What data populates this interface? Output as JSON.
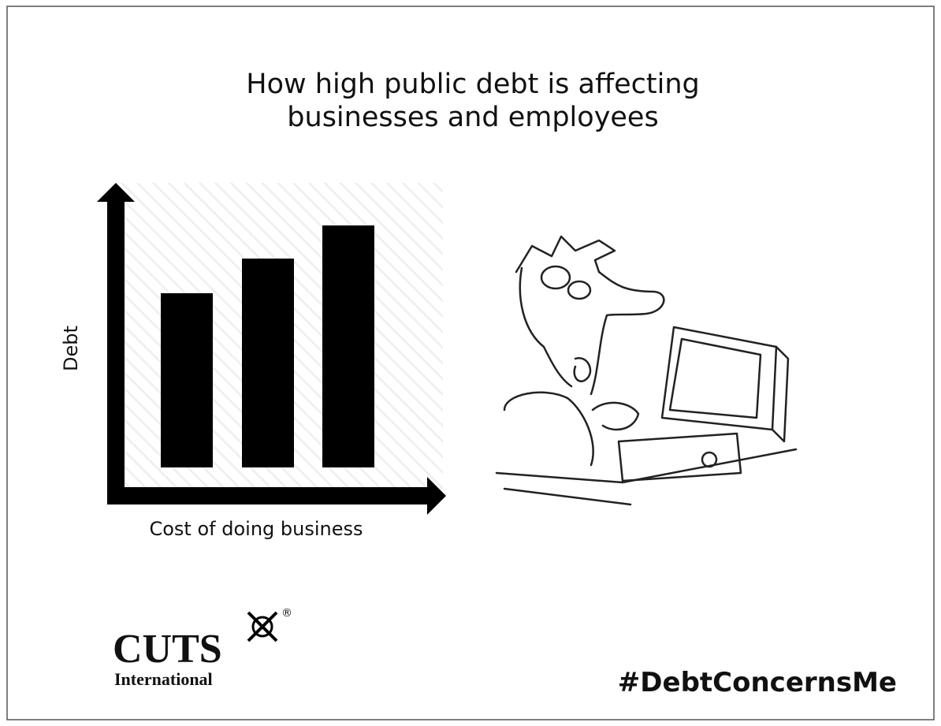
{
  "title": {
    "lines": [
      "How high public debt is affecting",
      "businesses and employees"
    ]
  },
  "chart": {
    "y_label": "Debt",
    "x_label": "Cost of doing business"
  },
  "logo": {
    "name": "CUTS",
    "mark": "®",
    "subtitle": "International"
  },
  "hashtag": "#DebtConcernsMe"
}
